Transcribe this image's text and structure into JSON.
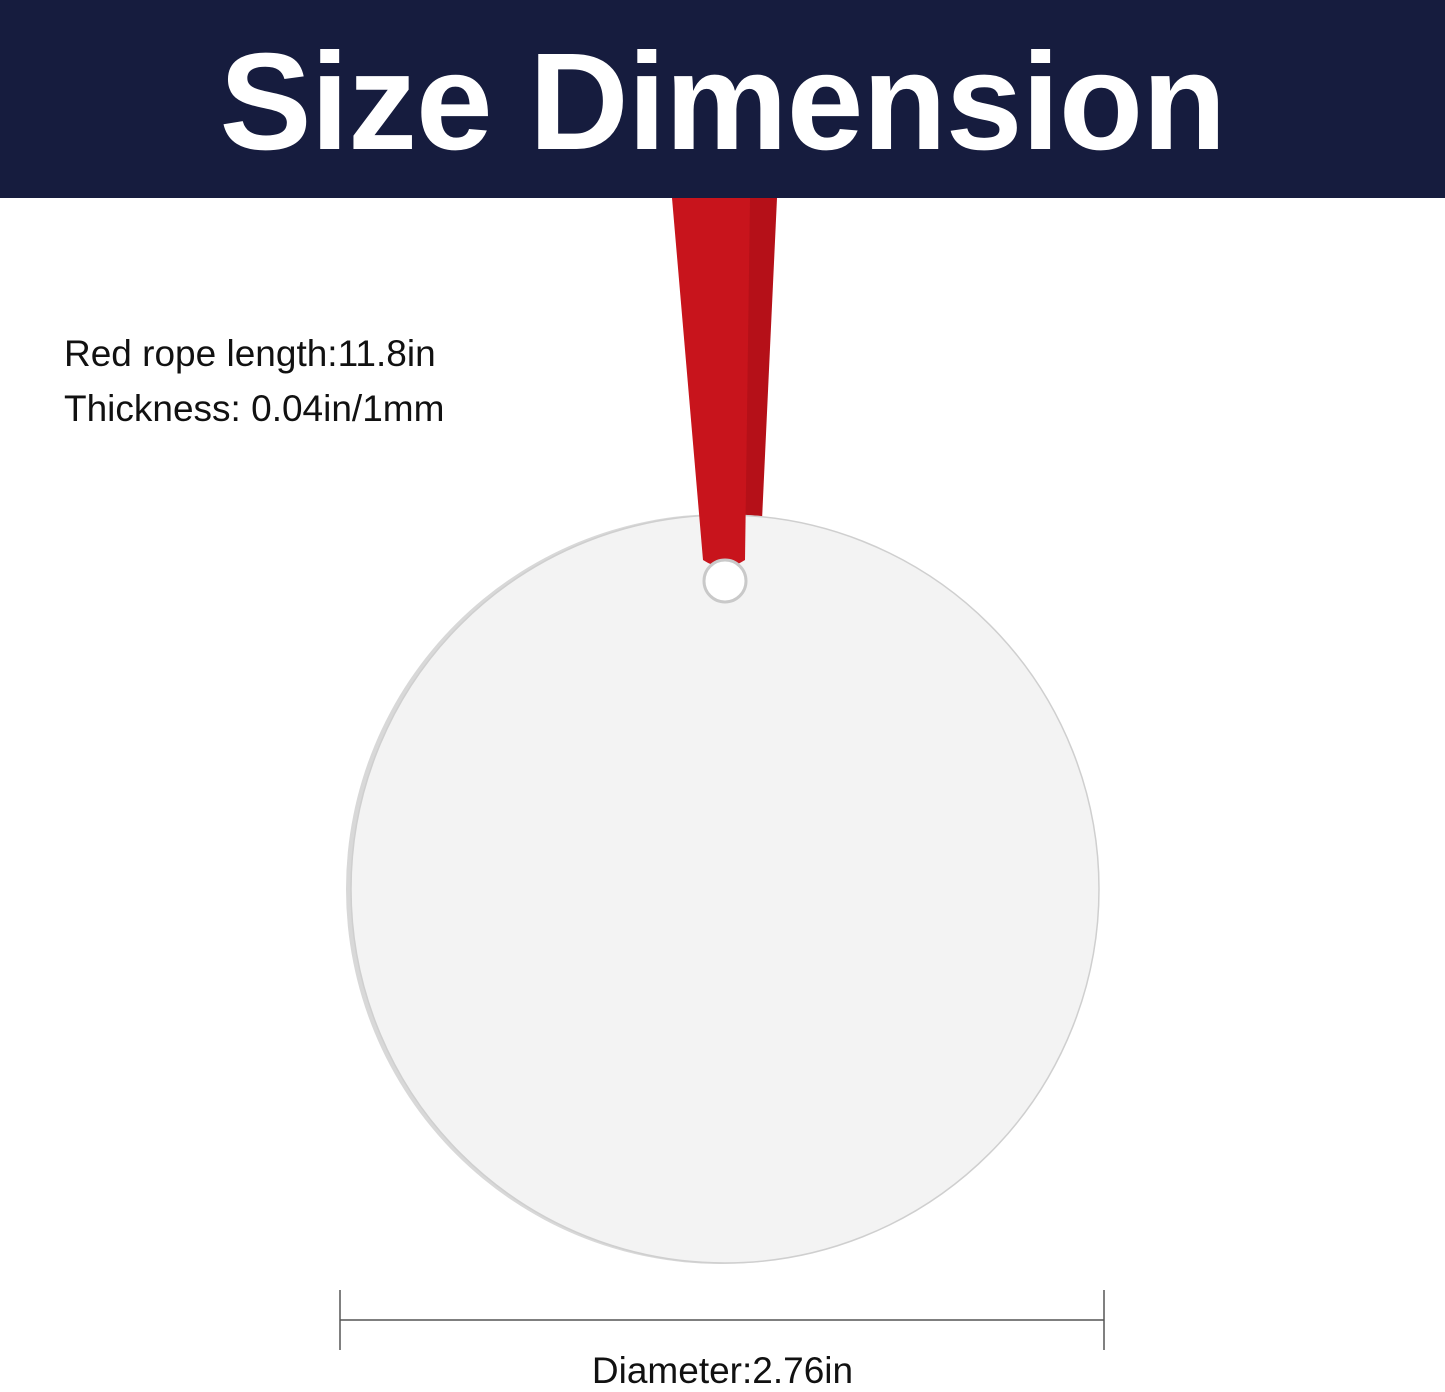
{
  "header": {
    "title": "Size Dimension"
  },
  "specs": {
    "rope_length": "Red rope length:11.8in",
    "thickness": "Thickness: 0.04in/1mm"
  },
  "dimension": {
    "diameter": "Diameter:2.76in"
  },
  "colors": {
    "banner": "#161c3e",
    "ribbon": "#c8141c",
    "ornament": "#f3f3f3"
  }
}
